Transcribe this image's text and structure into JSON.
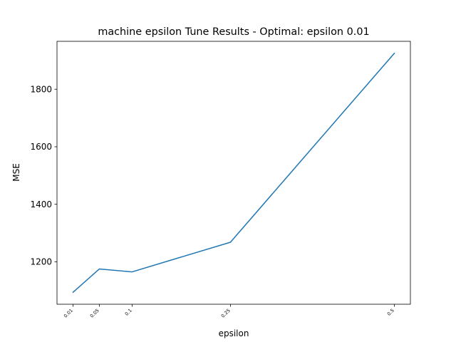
{
  "chart_data": {
    "type": "line",
    "title": "machine epsilon Tune Results - Optimal: epsilon 0.01",
    "xlabel": "epsilon",
    "ylabel": "MSE",
    "x": [
      0.01,
      0.05,
      0.1,
      0.25,
      0.5
    ],
    "x_tick_labels": [
      "0.01",
      "0.05",
      "0.1",
      "0.25",
      "0.5"
    ],
    "series": [
      {
        "values": [
          1094,
          1175,
          1165,
          1268,
          1925
        ],
        "color": "#1f77b4"
      }
    ],
    "y_ticks": [
      1200,
      1400,
      1600,
      1800
    ],
    "y_tick_labels": [
      "1200",
      "1400",
      "1600",
      "1800"
    ],
    "xlim": [
      -0.0145,
      0.5245
    ],
    "ylim": [
      1052.45,
      1966.55
    ],
    "grid": false,
    "legend": "none"
  }
}
